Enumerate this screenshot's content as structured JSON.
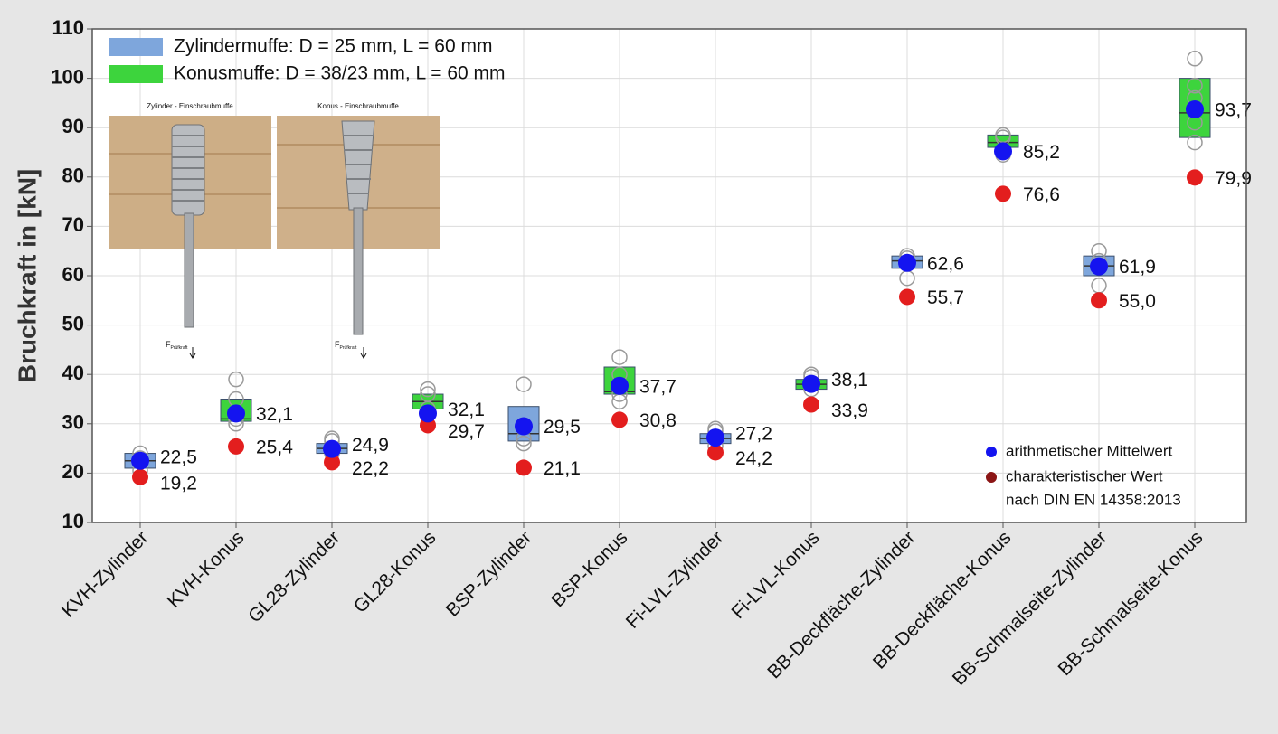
{
  "chart_data": {
    "type": "box",
    "ylabel": "Bruchkraft in [kN]",
    "ylim": [
      10,
      110
    ],
    "yticks": [
      10,
      20,
      30,
      40,
      50,
      60,
      70,
      80,
      90,
      100,
      110
    ],
    "grid": true,
    "categories": [
      "KVH-Zylinder",
      "KVH-Konus",
      "GL28-Zylinder",
      "GL28-Konus",
      "BSP-Zylinder",
      "BSP-Konus",
      "Fi-LVL-Zylinder",
      "Fi-LVL-Konus",
      "BB-Deckfläche-Zylinder",
      "BB-Deckfläche-Konus",
      "BB-Schmalseite-Zylinder",
      "BB-Schmalseite-Konus"
    ],
    "legend": [
      {
        "name": "Zylindermuffe: D = 25 mm, L = 60 mm",
        "color": "#7ea6dc"
      },
      {
        "name": "Konusmuffe: D = 38/23 mm, L = 60 mm",
        "color": "#3dd43d"
      }
    ],
    "box_colors": [
      "#7ea6dc",
      "#3dd43d",
      "#7ea6dc",
      "#3dd43d",
      "#7ea6dc",
      "#3dd43d",
      "#7ea6dc",
      "#3dd43d",
      "#7ea6dc",
      "#3dd43d",
      "#7ea6dc",
      "#3dd43d"
    ],
    "boxes": [
      {
        "q1": 21,
        "median": 22.5,
        "q3": 24,
        "points": [
          20.5,
          23,
          24
        ]
      },
      {
        "q1": 30.5,
        "median": 31,
        "q3": 35,
        "points": [
          30,
          31,
          35,
          39
        ]
      },
      {
        "q1": 24,
        "median": 25,
        "q3": 26,
        "points": [
          24,
          26.5,
          27
        ]
      },
      {
        "q1": 33,
        "median": 34.5,
        "q3": 36,
        "points": [
          33,
          36,
          37
        ]
      },
      {
        "q1": 26.5,
        "median": 28,
        "q3": 33.5,
        "points": [
          26,
          27,
          38
        ]
      },
      {
        "q1": 36,
        "median": 36.5,
        "q3": 41.5,
        "points": [
          34.5,
          36,
          40,
          43.5
        ]
      },
      {
        "q1": 26,
        "median": 27,
        "q3": 28,
        "points": [
          25.5,
          28.5,
          29
        ]
      },
      {
        "q1": 37,
        "median": 38,
        "q3": 39,
        "points": [
          37,
          39.5,
          40
        ]
      },
      {
        "q1": 61.5,
        "median": 63,
        "q3": 64,
        "points": [
          59.5,
          63.5,
          64
        ]
      },
      {
        "q1": 86,
        "median": 87,
        "q3": 88.5,
        "points": [
          84.5,
          88,
          88.5
        ]
      },
      {
        "q1": 60,
        "median": 62,
        "q3": 64,
        "points": [
          58,
          63,
          65
        ]
      },
      {
        "q1": 88,
        "median": 93,
        "q3": 100,
        "points": [
          87,
          91,
          96,
          98.5,
          104
        ]
      }
    ],
    "means": {
      "name": "arithmetischer Mittelwert",
      "color": "#1414f0",
      "values": [
        22.5,
        32.1,
        24.9,
        32.1,
        29.5,
        37.7,
        27.2,
        38.1,
        62.6,
        85.2,
        61.9,
        93.7
      ],
      "value_labels": [
        "22,5",
        "32,1",
        "24,9",
        "32,1",
        "29,5",
        "37,7",
        "27,2",
        "38,1",
        "62,6",
        "85,2",
        "61,9",
        "93,7"
      ]
    },
    "characteristic": {
      "name": [
        "charakteristischer Wert",
        "nach DIN EN 14358:2013"
      ],
      "color": "#e31e1e",
      "legend_color": "#8b1515",
      "values": [
        19.2,
        25.4,
        22.2,
        29.7,
        21.1,
        30.8,
        24.2,
        33.9,
        55.7,
        76.6,
        55.0,
        79.9
      ],
      "value_labels": [
        "19,2",
        "25,4",
        "22,2",
        "29,7",
        "21,1",
        "30,8",
        "24,2",
        "33,9",
        "55,7",
        "76,6",
        "55,0",
        "79,9"
      ]
    },
    "inset": {
      "captions": [
        "Zylinder - Einschraubmuffe",
        "Konus - Einschraubmuffe"
      ],
      "force_symbol": "F",
      "force_subscript": "Prüfkraft"
    }
  }
}
